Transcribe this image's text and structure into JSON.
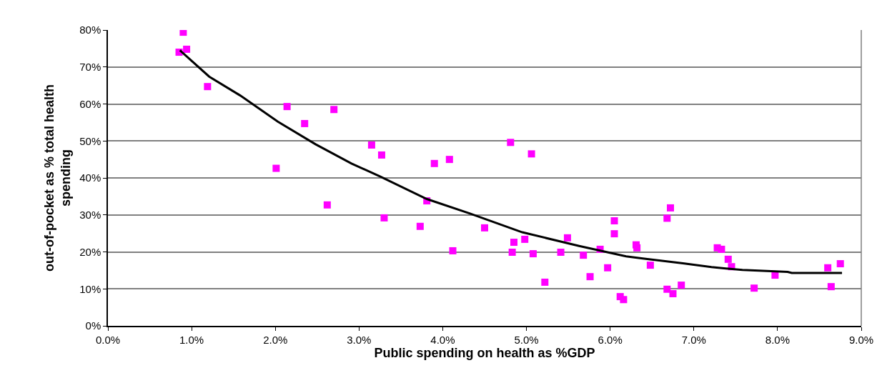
{
  "chart_data": {
    "type": "scatter",
    "xlabel": "Public spending on health as %GDP",
    "ylabel": "out-of-pocket as % total health spending",
    "xlim": [
      0,
      9
    ],
    "ylim": [
      0,
      80
    ],
    "xticks": [
      {
        "value": 0,
        "label": "0.0%"
      },
      {
        "value": 1,
        "label": "1.0%"
      },
      {
        "value": 2,
        "label": "2.0%"
      },
      {
        "value": 3,
        "label": "3.0%"
      },
      {
        "value": 4,
        "label": "4.0%"
      },
      {
        "value": 5,
        "label": "5.0%"
      },
      {
        "value": 6,
        "label": "6.0%"
      },
      {
        "value": 7,
        "label": "7.0%"
      },
      {
        "value": 8,
        "label": "8.0%"
      },
      {
        "value": 9,
        "label": "9.0%"
      }
    ],
    "yticks": [
      {
        "value": 0,
        "label": "0%"
      },
      {
        "value": 10,
        "label": "10%"
      },
      {
        "value": 20,
        "label": "20%"
      },
      {
        "value": 30,
        "label": "30%"
      },
      {
        "value": 40,
        "label": "40%"
      },
      {
        "value": 50,
        "label": "50%"
      },
      {
        "value": 60,
        "label": "60%"
      },
      {
        "value": 70,
        "label": "70%"
      },
      {
        "value": 80,
        "label": "80%"
      }
    ],
    "grid": "y",
    "series": [
      {
        "color": "#ff00ff",
        "marker": "square",
        "x": [
          0.85,
          0.9,
          0.94,
          1.19,
          2.14,
          2.35,
          2.7,
          2.01,
          2.62,
          3.15,
          3.27,
          3.3,
          3.9,
          4.08,
          3.81,
          3.73,
          4.12,
          4.5,
          4.81,
          5.06,
          4.85,
          4.83,
          4.98,
          5.08,
          5.22,
          5.49,
          5.41,
          5.68,
          5.76,
          5.88,
          5.97,
          6.05,
          6.05,
          6.12,
          6.16,
          6.31,
          6.32,
          6.48,
          6.68,
          6.72,
          6.68,
          6.75,
          6.85,
          7.28,
          7.33,
          7.41,
          7.45,
          7.72,
          7.97,
          8.6,
          8.64,
          8.75
        ],
        "values": [
          74.0,
          79.4,
          74.8,
          64.7,
          59.3,
          54.7,
          58.5,
          42.6,
          32.7,
          48.9,
          46.2,
          29.2,
          43.9,
          45.0,
          33.8,
          26.9,
          20.3,
          26.5,
          49.6,
          46.5,
          22.6,
          19.9,
          23.4,
          19.5,
          11.8,
          23.8,
          19.9,
          19.1,
          13.3,
          20.7,
          15.7,
          28.4,
          24.9,
          7.9,
          7.1,
          21.9,
          21.1,
          16.4,
          29.1,
          31.9,
          9.9,
          8.7,
          11.0,
          21.1,
          20.7,
          18.0,
          16.0,
          10.2,
          13.7,
          15.7,
          10.6,
          16.8
        ]
      },
      {
        "type": "line",
        "color": "#000000",
        "marker": "none",
        "line_style": "solid",
        "x": [
          0.86,
          1.21,
          1.58,
          2.03,
          2.48,
          2.91,
          3.25,
          3.81,
          4.32,
          4.95,
          5.63,
          6.19,
          6.39,
          6.87,
          7.21,
          7.58,
          8.12,
          8.17,
          8.77
        ],
        "values": [
          74.5,
          67.4,
          62.3,
          55.2,
          49.1,
          43.9,
          40.4,
          34.3,
          30.4,
          25.3,
          21.6,
          18.8,
          18.2,
          16.9,
          15.9,
          15.1,
          14.6,
          14.3,
          14.3
        ]
      }
    ]
  }
}
